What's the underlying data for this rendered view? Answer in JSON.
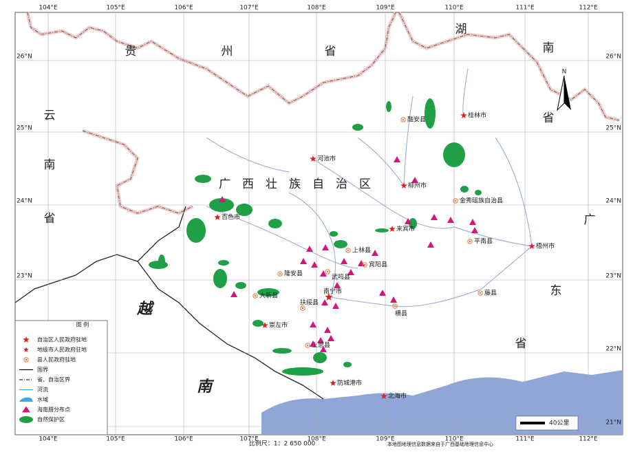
{
  "grid": {
    "longitudes": [
      "104°E",
      "105°E",
      "106°E",
      "107°E",
      "108°E",
      "109°E",
      "110°E",
      "111°E",
      "112°E"
    ],
    "latitudes": [
      "26°N",
      "25°N",
      "24°N",
      "23°N",
      "22°N",
      "21°N"
    ]
  },
  "regions": [
    "贵",
    "州",
    "省",
    "湖",
    "南",
    "省",
    "云",
    "南",
    "省",
    "广",
    "东",
    "省",
    "越",
    "南",
    "广西壮族自治区"
  ],
  "places": [
    {
      "name": "河池市",
      "kind": "city"
    },
    {
      "name": "桂林市",
      "kind": "city"
    },
    {
      "name": "柳州市",
      "kind": "city"
    },
    {
      "name": "百色市",
      "kind": "city"
    },
    {
      "name": "来宾市",
      "kind": "city"
    },
    {
      "name": "梧州市",
      "kind": "city"
    },
    {
      "name": "南宁市",
      "kind": "capital"
    },
    {
      "name": "崇左市",
      "kind": "city"
    },
    {
      "name": "防城港市",
      "kind": "city"
    },
    {
      "name": "北海市",
      "kind": "city"
    },
    {
      "name": "融安县",
      "kind": "county"
    },
    {
      "name": "金秀瑶族自治县",
      "kind": "county"
    },
    {
      "name": "平南县",
      "kind": "county"
    },
    {
      "name": "上林县",
      "kind": "county"
    },
    {
      "name": "宾阳县",
      "kind": "county"
    },
    {
      "name": "武鸣县",
      "kind": "county"
    },
    {
      "name": "隆安县",
      "kind": "county"
    },
    {
      "name": "大新县",
      "kind": "county"
    },
    {
      "name": "扶绥县",
      "kind": "county"
    },
    {
      "name": "横县",
      "kind": "county"
    },
    {
      "name": "上思县",
      "kind": "county"
    },
    {
      "name": "藤县",
      "kind": "county"
    }
  ],
  "legend": {
    "title": "图 例",
    "items": [
      "自治区人民政府驻地",
      "地级市人民政府驻地",
      "县人民政府驻地",
      "国界",
      "省、自治区界",
      "河流",
      "水域",
      "海南腊分布点",
      "自然保护区"
    ]
  },
  "scale": {
    "bar": "40公里",
    "ratio": "比例尺：1：2 650 000"
  },
  "credit": "本地图地理信息数据来自于广西基础地理信息中心"
}
